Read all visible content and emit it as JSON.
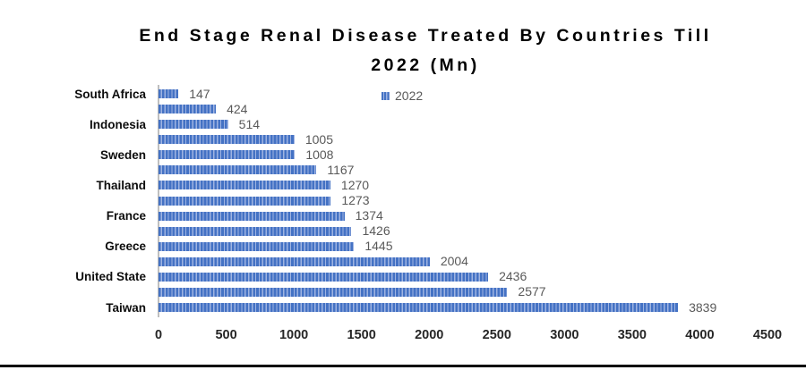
{
  "title": {
    "line1": "End Stage Renal Disease Treated By Countries Till",
    "line2": "2022 (Mn)"
  },
  "legend": {
    "label": "2022",
    "marker": "striped-blue-square"
  },
  "colors": {
    "bar_primary": "#4472C4",
    "bar_stripe_light": "#9FB4E2",
    "data_label_gray": "#595959",
    "axis_line_gray": "#BFBFBF",
    "tick_label": "#262626",
    "category_label": "#0d0d0d",
    "title_color": "#000000",
    "bottom_border": "#000000"
  },
  "chart_data": {
    "type": "bar",
    "orientation": "horizontal",
    "title": "End Stage Renal Disease Treated By Countries Till 2022 (Mn)",
    "series_name": "2022",
    "gridlines": false,
    "data_labels_visible": true,
    "legend_position": "top-right-of-plot",
    "rows": [
      {
        "category": "South Africa",
        "value": 147
      },
      {
        "category": "",
        "value": 424
      },
      {
        "category": "Indonesia",
        "value": 514
      },
      {
        "category": "",
        "value": 1005
      },
      {
        "category": "Sweden",
        "value": 1008
      },
      {
        "category": "",
        "value": 1167
      },
      {
        "category": "Thailand",
        "value": 1270
      },
      {
        "category": "",
        "value": 1273
      },
      {
        "category": "France",
        "value": 1374
      },
      {
        "category": "",
        "value": 1426
      },
      {
        "category": "Greece",
        "value": 1445
      },
      {
        "category": "",
        "value": 2004
      },
      {
        "category": "United State",
        "value": 2436
      },
      {
        "category": "",
        "value": 2577
      },
      {
        "category": "Taiwan",
        "value": 3839
      }
    ],
    "x_axis": {
      "min": 0,
      "max": 4500,
      "tick_interval": 500,
      "ticks": [
        0,
        500,
        1000,
        1500,
        2000,
        2500,
        3000,
        3500,
        4000,
        4500
      ]
    }
  }
}
